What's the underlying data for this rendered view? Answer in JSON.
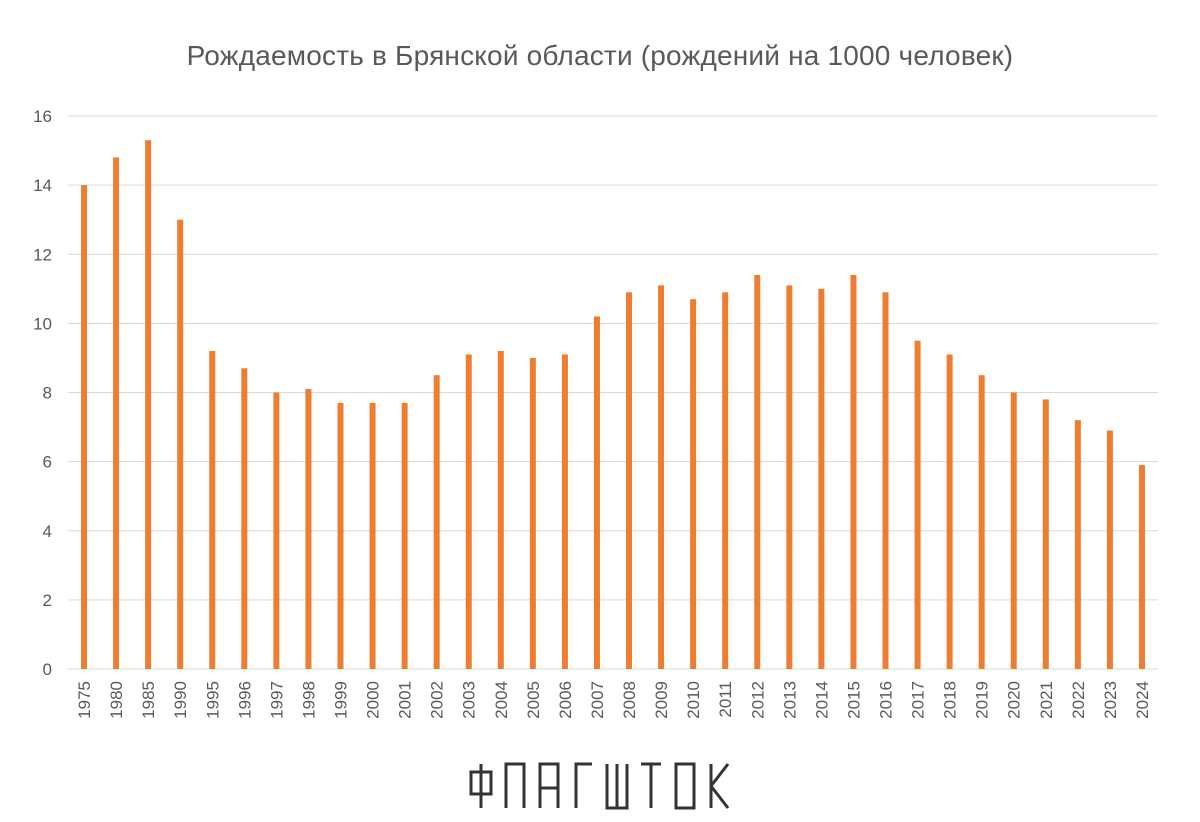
{
  "chart_data": {
    "type": "bar",
    "title": "Рождаемость в Брянской области (рождений на 1000 человек)",
    "xlabel": "",
    "ylabel": "",
    "ylim": [
      0,
      16
    ],
    "y_ticks": [
      "0",
      "2",
      "4",
      "6",
      "8",
      "10",
      "12",
      "14",
      "16"
    ],
    "grid": true,
    "legend": "none",
    "categories": [
      "1975",
      "1980",
      "1985",
      "1990",
      "1995",
      "1996",
      "1997",
      "1998",
      "1999",
      "2000",
      "2001",
      "2002",
      "2003",
      "2004",
      "2005",
      "2006",
      "2007",
      "2008",
      "2009",
      "2010",
      "2011",
      "2012",
      "2013",
      "2014",
      "2015",
      "2016",
      "2017",
      "2018",
      "2019",
      "2020",
      "2021",
      "2022",
      "2023",
      "2024"
    ],
    "values": [
      14.0,
      14.8,
      15.3,
      13.0,
      9.2,
      8.7,
      8.0,
      8.1,
      7.7,
      7.7,
      7.7,
      8.5,
      9.1,
      9.2,
      9.0,
      9.1,
      10.2,
      10.9,
      11.1,
      10.7,
      10.9,
      11.4,
      11.1,
      11.0,
      11.4,
      10.9,
      9.5,
      9.1,
      8.5,
      8.0,
      7.8,
      7.2,
      6.9,
      5.9
    ],
    "colors": {
      "bar": "#ED7D31",
      "grid": "#D9D9D9",
      "text": "#595959"
    }
  },
  "watermark": {
    "text": "ФЛАГШТОК",
    "color": "#333333"
  }
}
